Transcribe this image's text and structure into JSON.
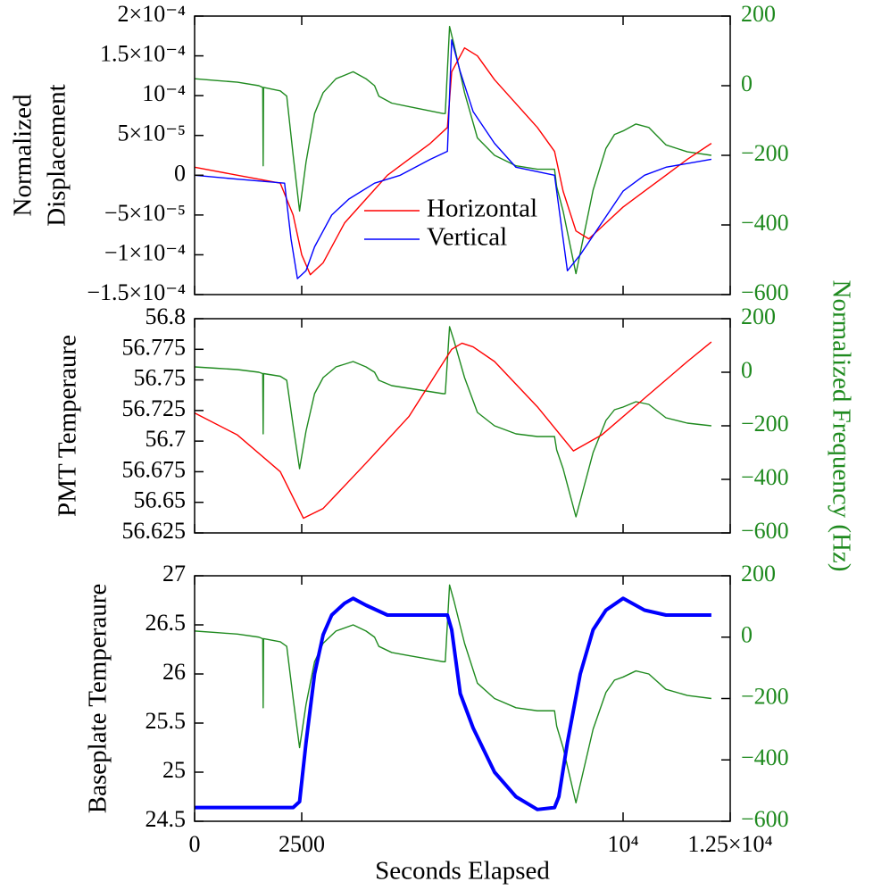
{
  "chart_data": [
    {
      "type": "line",
      "ylabel": [
        "Normalized",
        "Displacement"
      ],
      "xlim": [
        0,
        12500
      ],
      "ylim": [
        -0.00015,
        0.0002
      ],
      "yticks": [
        {
          "value": 0.0002,
          "label": "2×10⁻⁴"
        },
        {
          "value": 0.00015,
          "label": "1.5×10⁻⁴"
        },
        {
          "value": 0.0001,
          "label": "10⁻⁴"
        },
        {
          "value": 5e-05,
          "label": "5×10⁻⁵"
        },
        0,
        {
          "value": -5e-05,
          "label": "−5×10⁻⁵"
        },
        {
          "value": -0.0001,
          "label": "−1×10⁻⁴"
        },
        {
          "value": -0.00015,
          "label": "−1.5×10⁻⁴"
        }
      ],
      "y2lim": [
        -600,
        200
      ],
      "y2ticks": [
        200,
        0,
        {
          "value": -200,
          "label": "−200"
        },
        {
          "value": -400,
          "label": "−400"
        },
        {
          "value": -600,
          "label": "−600"
        }
      ],
      "legend": "lower center",
      "series": [
        {
          "color": "#1f8a1f",
          "axis": "y2",
          "x": [
            0,
            500,
            1000,
            1500,
            1590,
            1600,
            1610,
            2000,
            2150,
            2300,
            2450,
            2600,
            2800,
            3000,
            3300,
            3700,
            4000,
            4200,
            4300,
            4600,
            5000,
            5400,
            5800,
            5850,
            5950,
            6050,
            6300,
            6600,
            7000,
            7500,
            8000,
            8400,
            8450,
            8600,
            8800,
            8900,
            9100,
            9300,
            9600,
            9800,
            10000,
            10300,
            10600,
            11000,
            11500,
            12060
          ],
          "values": [
            20,
            15,
            10,
            0,
            -5,
            -230,
            -5,
            -15,
            -30,
            -200,
            -360,
            -220,
            -80,
            -20,
            20,
            40,
            20,
            0,
            -30,
            -50,
            -60,
            -70,
            -80,
            -80,
            170,
            120,
            -20,
            -150,
            -200,
            -230,
            -240,
            -240,
            -290,
            -360,
            -480,
            -540,
            -420,
            -300,
            -180,
            -140,
            -130,
            -110,
            -120,
            -170,
            -190,
            -200
          ]
        },
        {
          "name": "Horizontal",
          "color": "#ff0000",
          "x": [
            0,
            1000,
            2000,
            2300,
            2500,
            2700,
            3000,
            3500,
            4000,
            4500,
            5000,
            5500,
            5900,
            6000,
            6300,
            6600,
            7000,
            7500,
            8000,
            8400,
            8600,
            8900,
            9200,
            9600,
            10000,
            10500,
            11000,
            11500,
            12060
          ],
          "values": [
            1e-05,
            0,
            -1e-05,
            -5e-05,
            -0.0001,
            -0.000125,
            -0.00011,
            -6e-05,
            -3e-05,
            0,
            2e-05,
            4e-05,
            6e-05,
            0.00013,
            0.00016,
            0.00015,
            0.00012,
            9e-05,
            6e-05,
            3e-05,
            -2e-05,
            -7e-05,
            -8e-05,
            -6e-05,
            -4e-05,
            -2e-05,
            0,
            2e-05,
            4e-05
          ]
        },
        {
          "name": "Vertical",
          "color": "#0000ff",
          "x": [
            0,
            1000,
            2100,
            2250,
            2400,
            2600,
            2800,
            3000,
            3200,
            3600,
            4200,
            4800,
            5500,
            5900,
            6000,
            6200,
            6500,
            7000,
            7500,
            8400,
            8550,
            8700,
            9000,
            9500,
            10000,
            10500,
            11000,
            12060
          ],
          "values": [
            0,
            -5e-06,
            -1e-05,
            -8e-05,
            -0.00013,
            -0.00012,
            -9e-05,
            -7e-05,
            -5e-05,
            -3e-05,
            -1e-05,
            0,
            2e-05,
            3e-05,
            0.00017,
            0.00013,
            8e-05,
            4e-05,
            1e-05,
            0,
            -6e-05,
            -0.00012,
            -0.0001,
            -6e-05,
            -2e-05,
            0,
            1e-05,
            2e-05
          ]
        }
      ]
    },
    {
      "type": "line",
      "ylabel": "PMT Temperaure",
      "y2label": "Normalized Frequency (Hz)",
      "xlim": [
        0,
        12500
      ],
      "ylim": [
        56.625,
        56.8
      ],
      "yticks": [
        56.8,
        56.775,
        56.75,
        56.725,
        56.7,
        56.675,
        56.65,
        56.625
      ],
      "y2lim": [
        -600,
        200
      ],
      "y2ticks": [
        200,
        0,
        {
          "value": -200,
          "label": "−200"
        },
        {
          "value": -400,
          "label": "−400"
        },
        {
          "value": -600,
          "label": "−600"
        }
      ],
      "series": [
        {
          "color": "#1f8a1f",
          "axis": "y2",
          "x": [
            0,
            500,
            1000,
            1500,
            1590,
            1600,
            1610,
            2000,
            2150,
            2300,
            2450,
            2600,
            2800,
            3000,
            3300,
            3700,
            4000,
            4200,
            4300,
            4600,
            5000,
            5400,
            5800,
            5850,
            5950,
            6050,
            6300,
            6600,
            7000,
            7500,
            8000,
            8400,
            8450,
            8600,
            8800,
            8900,
            9100,
            9300,
            9600,
            9800,
            10000,
            10300,
            10600,
            11000,
            11500,
            12060
          ],
          "values": [
            20,
            15,
            10,
            0,
            -5,
            -230,
            -5,
            -15,
            -30,
            -200,
            -360,
            -220,
            -80,
            -20,
            20,
            40,
            20,
            0,
            -30,
            -50,
            -60,
            -70,
            -80,
            -80,
            170,
            120,
            -20,
            -150,
            -200,
            -230,
            -240,
            -240,
            -290,
            -360,
            -480,
            -540,
            -420,
            -300,
            -180,
            -140,
            -130,
            -110,
            -120,
            -170,
            -190,
            -200
          ]
        },
        {
          "color": "#ff0000",
          "x": [
            0,
            1000,
            2000,
            2540,
            3000,
            4000,
            5000,
            6000,
            6240,
            6500,
            7000,
            8000,
            8840,
            9500,
            10500,
            11500,
            12060
          ],
          "values": [
            56.723,
            56.705,
            56.675,
            56.637,
            56.645,
            56.682,
            56.72,
            56.775,
            56.78,
            56.777,
            56.765,
            56.728,
            56.692,
            56.705,
            56.735,
            56.765,
            56.781
          ]
        }
      ]
    },
    {
      "type": "line",
      "ylabel": "Baseplate Temperaure",
      "xlabel": "Seconds Elapsed",
      "xlim": [
        0,
        12500
      ],
      "xticks": [
        0,
        2500,
        {
          "value": 10000,
          "label": "10⁴"
        },
        {
          "value": 12500,
          "label": "1.25×10⁴"
        }
      ],
      "ylim": [
        24.5,
        27
      ],
      "yticks": [
        27,
        26.5,
        26,
        25.5,
        25,
        24.5
      ],
      "y2lim": [
        -600,
        200
      ],
      "y2ticks": [
        200,
        0,
        {
          "value": -200,
          "label": "−200"
        },
        {
          "value": -400,
          "label": "−400"
        },
        {
          "value": -600,
          "label": "−600"
        }
      ],
      "series": [
        {
          "color": "#1f8a1f",
          "axis": "y2",
          "x": [
            0,
            500,
            1000,
            1500,
            1590,
            1600,
            1610,
            2000,
            2150,
            2300,
            2450,
            2600,
            2800,
            3000,
            3300,
            3700,
            4000,
            4200,
            4300,
            4600,
            5000,
            5400,
            5800,
            5850,
            5950,
            6050,
            6300,
            6600,
            7000,
            7500,
            8000,
            8400,
            8450,
            8600,
            8800,
            8900,
            9100,
            9300,
            9600,
            9800,
            10000,
            10300,
            10600,
            11000,
            11500,
            12060
          ],
          "values": [
            20,
            15,
            10,
            0,
            -5,
            -230,
            -5,
            -15,
            -30,
            -200,
            -360,
            -220,
            -80,
            -20,
            20,
            40,
            20,
            0,
            -30,
            -50,
            -60,
            -70,
            -80,
            -80,
            170,
            120,
            -20,
            -150,
            -200,
            -230,
            -240,
            -240,
            -290,
            -360,
            -480,
            -540,
            -420,
            -300,
            -180,
            -140,
            -130,
            -110,
            -120,
            -170,
            -190,
            -200
          ]
        },
        {
          "color": "#0000ff",
          "line_width": 4,
          "x": [
            0,
            2300,
            2450,
            2600,
            2800,
            3000,
            3200,
            3500,
            3700,
            4000,
            4500,
            5900,
            6000,
            6200,
            6500,
            7000,
            7500,
            8000,
            8400,
            8500,
            8700,
            9000,
            9300,
            9600,
            10000,
            10500,
            11000,
            12060
          ],
          "values": [
            24.64,
            24.64,
            24.7,
            25.3,
            26.0,
            26.4,
            26.6,
            26.72,
            26.77,
            26.7,
            26.6,
            26.6,
            26.45,
            25.8,
            25.45,
            25.0,
            24.75,
            24.62,
            24.64,
            24.75,
            25.3,
            26.0,
            26.45,
            26.65,
            26.77,
            26.65,
            26.6,
            26.6
          ]
        }
      ]
    }
  ]
}
